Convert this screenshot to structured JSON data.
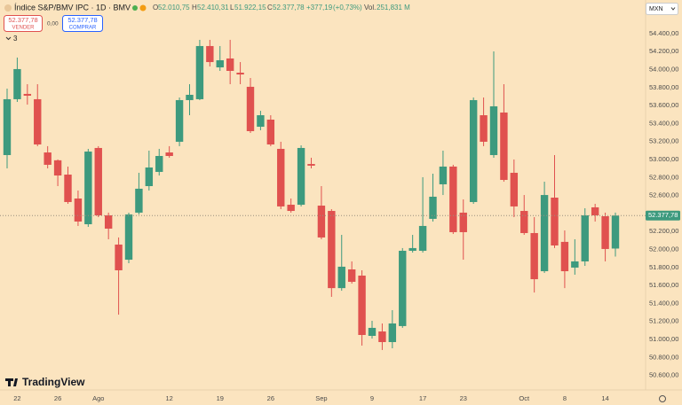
{
  "chart_data": {
    "type": "candlestick",
    "title": "Índice S&P/BMV IPC · 1D · BMV",
    "header": {
      "open_label": "O",
      "open": {
        "value": 52010.75,
        "label": "52.010,75"
      },
      "high_label": "H",
      "high": {
        "value": 52410.31,
        "label": "52.410,31"
      },
      "low_label": "L",
      "low": {
        "value": 51922.15,
        "label": "51.922,15"
      },
      "close_label": "C",
      "close": {
        "value": 52377.78,
        "label": "52.377,78"
      },
      "change": {
        "value": 377.19,
        "label": "+377,19"
      },
      "change_pct": {
        "value": 0.73,
        "label": "(+0,73%)"
      },
      "volume_label": "Vol.",
      "volume": {
        "value": 251.831,
        "label": "251,831 M"
      }
    },
    "sell": {
      "price": {
        "value": 52377.78,
        "label": "52.377,78"
      },
      "label": "VENDER"
    },
    "spread": {
      "value": 0,
      "label": "0,00"
    },
    "buy": {
      "price": {
        "value": 52377.78,
        "label": "52.377,78"
      },
      "label": "COMPRAR"
    },
    "indicators_count": 3,
    "currency": "MXN",
    "brand": "TradingView",
    "last_price": {
      "value": 52377.78,
      "label": "52.377,78"
    },
    "categories": [
      null,
      "22",
      null,
      null,
      null,
      "26",
      null,
      null,
      null,
      "Ago",
      null,
      null,
      null,
      null,
      null,
      null,
      "12",
      null,
      null,
      null,
      null,
      "19",
      null,
      null,
      null,
      null,
      "26",
      null,
      null,
      null,
      null,
      "Sep",
      null,
      null,
      null,
      null,
      "9",
      null,
      null,
      null,
      null,
      "17",
      null,
      null,
      null,
      "23",
      null,
      null,
      null,
      null,
      null,
      "Oct",
      null,
      null,
      null,
      "8",
      null,
      null,
      null,
      "14",
      null
    ],
    "open": [
      53050,
      53671,
      53730,
      53671,
      53079,
      52992,
      52833,
      52567,
      52281,
      53129,
      52380,
      52055,
      51887,
      52410,
      52705,
      52863,
      53079,
      53198,
      53661,
      53671,
      54262,
      54025,
      54124,
      53966,
      53809,
      53365,
      53444,
      53119,
      52498,
      52498,
      52951,
      52488,
      52429,
      51571,
      51779,
      51710,
      51040,
      51089,
      50971,
      51149,
      51986,
      51986,
      52341,
      52725,
      52922,
      52410,
      52528,
      53493,
      53050,
      53523,
      52853,
      52429,
      52183,
      51759,
      52577,
      52085,
      51799,
      51868,
      52469,
      52370,
      52010.75
    ],
    "high": [
      53789,
      54134,
      53838,
      53838,
      53149,
      53001,
      52922,
      52656,
      53119,
      53149,
      52410,
      52134,
      52410,
      52853,
      53099,
      53119,
      53149,
      53690,
      53838,
      54331,
      54331,
      54262,
      54331,
      54084,
      53907,
      53542,
      53493,
      53198,
      52567,
      53158,
      53020,
      52705,
      52449,
      52163,
      51868,
      51769,
      51208,
      51178,
      51326,
      52016,
      52163,
      52804,
      52843,
      53099,
      52942,
      52557,
      53690,
      53690,
      54203,
      53838,
      53001,
      52606,
      52360,
      52754,
      53050,
      52212,
      52114,
      52459,
      52508,
      52410,
      52410.31
    ],
    "low": [
      52902,
      53641,
      53611,
      53149,
      52902,
      52705,
      52508,
      52262,
      52252,
      52360,
      52114,
      51276,
      51848,
      52390,
      52656,
      52823,
      53020,
      53149,
      53493,
      53661,
      54035,
      53986,
      53838,
      53838,
      53296,
      53326,
      53149,
      52449,
      52410,
      52479,
      52902,
      52114,
      51474,
      51542,
      51621,
      50932,
      51010,
      50883,
      50902,
      51129,
      51966,
      51966,
      52311,
      52606,
      52173,
      51887,
      52508,
      53149,
      53020,
      52754,
      52360,
      52163,
      51522,
      51740,
      52016,
      51571,
      51720,
      51818,
      52311,
      51868,
      51922.15
    ],
    "close": [
      53671,
      54006,
      53710,
      53168,
      52942,
      52823,
      52528,
      52311,
      53089,
      52380,
      52232,
      51769,
      52390,
      52676,
      52912,
      53040,
      53040,
      53661,
      53720,
      54262,
      54084,
      54104,
      53986,
      53946,
      53316,
      53493,
      53168,
      52479,
      52429,
      53129,
      52932,
      52134,
      51571,
      51809,
      51641,
      51050,
      51129,
      50971,
      51178,
      51986,
      52016,
      52262,
      52587,
      52922,
      52193,
      52193,
      53661,
      53198,
      53592,
      52774,
      52479,
      52183,
      51670,
      52606,
      52045,
      51759,
      51868,
      52380,
      52380,
      52006,
      52377.78
    ],
    "up_color": "#3d9a7e",
    "down_color": "#e0514f",
    "ylim": [
      50439,
      54774
    ],
    "yticks": [
      {
        "value": 50600,
        "label": "50.600,00"
      },
      {
        "value": 50800,
        "label": "50.800,00"
      },
      {
        "value": 51000,
        "label": "51.000,00"
      },
      {
        "value": 51200,
        "label": "51.200,00"
      },
      {
        "value": 51400,
        "label": "51.400,00"
      },
      {
        "value": 51600,
        "label": "51.600,00"
      },
      {
        "value": 51800,
        "label": "51.800,00"
      },
      {
        "value": 52000,
        "label": "52.000,00"
      },
      {
        "value": 52200,
        "label": "52.200,00"
      },
      {
        "value": 52600,
        "label": "52.600,00"
      },
      {
        "value": 52800,
        "label": "52.800,00"
      },
      {
        "value": 53000,
        "label": "53.000,00"
      },
      {
        "value": 53200,
        "label": "53.200,00"
      },
      {
        "value": 53400,
        "label": "53.400,00"
      },
      {
        "value": 53600,
        "label": "53.600,00"
      },
      {
        "value": 53800,
        "label": "53.800,00"
      },
      {
        "value": 54000,
        "label": "54.000,00"
      },
      {
        "value": 54200,
        "label": "54.200,00"
      },
      {
        "value": 54400,
        "label": "54.400,00"
      }
    ],
    "grid": false
  }
}
